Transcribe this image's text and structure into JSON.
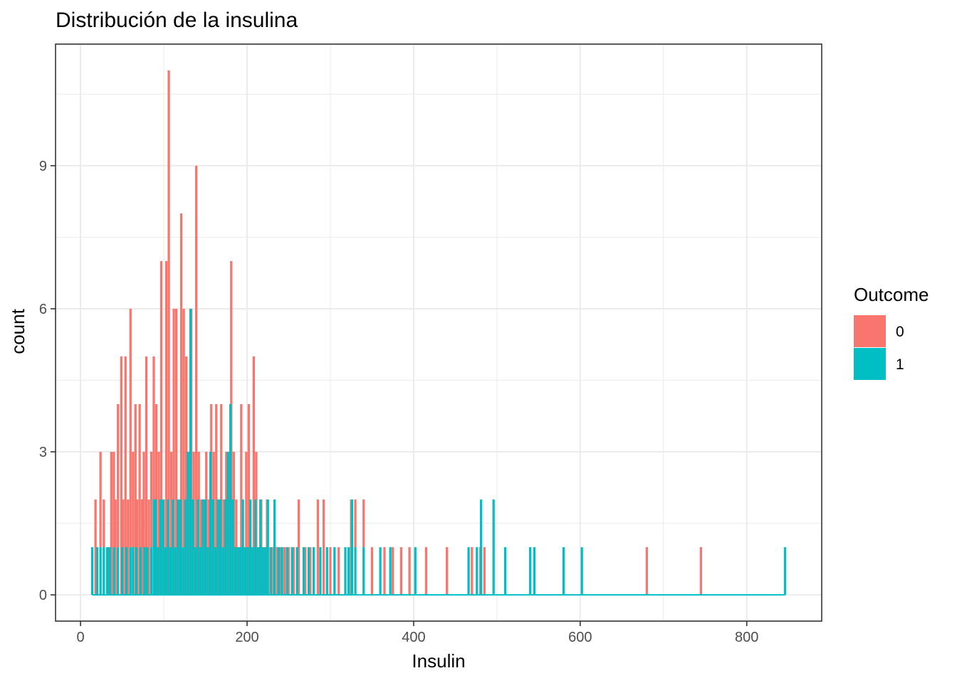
{
  "chart_data": {
    "type": "bar",
    "subtype": "histogram",
    "title": "Distribución de la insulina",
    "xlabel": "Insulin",
    "ylabel": "count",
    "xlim": [
      -30,
      890
    ],
    "ylim": [
      -0.55,
      11.55
    ],
    "x_ticks": [
      0,
      200,
      400,
      600,
      800
    ],
    "y_ticks": [
      0,
      3,
      6,
      9
    ],
    "bin_width": 2.8,
    "grid": true,
    "stacked": true,
    "legend": {
      "title": "Outcome",
      "position": "right",
      "entries": [
        {
          "label": "0",
          "color": "#F8766D"
        },
        {
          "label": "1",
          "color": "#00BFC4"
        }
      ]
    },
    "colors": {
      "0": "#F8766D",
      "1": "#00BFC4"
    },
    "x_range": [
      14,
      846
    ],
    "series": [
      {
        "name": "0",
        "color": "#F8766D",
        "bins": [
          [
            18,
            2
          ],
          [
            24,
            2
          ],
          [
            28,
            1
          ],
          [
            33,
            1
          ],
          [
            37,
            3
          ],
          [
            40,
            2
          ],
          [
            42,
            2
          ],
          [
            45,
            3
          ],
          [
            49,
            5
          ],
          [
            51,
            2
          ],
          [
            54,
            5
          ],
          [
            57,
            2
          ],
          [
            60,
            5
          ],
          [
            63,
            2
          ],
          [
            66,
            4
          ],
          [
            68,
            2
          ],
          [
            71,
            4
          ],
          [
            74,
            2
          ],
          [
            76,
            3
          ],
          [
            79,
            5
          ],
          [
            82,
            2
          ],
          [
            85,
            2
          ],
          [
            88,
            3
          ],
          [
            91,
            4
          ],
          [
            94,
            3
          ],
          [
            97,
            7
          ],
          [
            100,
            2
          ],
          [
            103,
            7
          ],
          [
            106,
            11
          ],
          [
            109,
            3
          ],
          [
            112,
            6
          ],
          [
            115,
            6
          ],
          [
            118,
            2
          ],
          [
            121,
            8
          ],
          [
            124,
            6
          ],
          [
            127,
            5
          ],
          [
            130,
            3
          ],
          [
            133,
            6
          ],
          [
            136,
            3
          ],
          [
            139,
            9
          ],
          [
            142,
            3
          ],
          [
            145,
            2
          ],
          [
            148,
            2
          ],
          [
            151,
            3
          ],
          [
            154,
            2
          ],
          [
            157,
            4
          ],
          [
            160,
            3
          ],
          [
            163,
            4
          ],
          [
            166,
            2
          ],
          [
            169,
            4
          ],
          [
            172,
            2
          ],
          [
            175,
            3
          ],
          [
            178,
            3
          ],
          [
            181,
            7
          ],
          [
            184,
            3
          ],
          [
            187,
            2
          ],
          [
            190,
            1
          ],
          [
            193,
            4
          ],
          [
            196,
            1
          ],
          [
            199,
            3
          ],
          [
            202,
            4
          ],
          [
            205,
            1
          ],
          [
            208,
            5
          ],
          [
            211,
            3
          ],
          [
            214,
            1
          ],
          [
            217,
            2
          ],
          [
            220,
            1
          ],
          [
            224,
            2
          ],
          [
            228,
            1
          ],
          [
            232,
            1
          ],
          [
            236,
            1
          ],
          [
            240,
            1
          ],
          [
            245,
            1
          ],
          [
            250,
            1
          ],
          [
            256,
            1
          ],
          [
            262,
            2
          ],
          [
            270,
            1
          ],
          [
            276,
            1
          ],
          [
            285,
            2
          ],
          [
            292,
            2
          ],
          [
            300,
            1
          ],
          [
            310,
            1
          ],
          [
            325,
            2
          ],
          [
            330,
            1
          ],
          [
            340,
            1
          ],
          [
            350,
            1
          ],
          [
            365,
            1
          ],
          [
            375,
            1
          ],
          [
            385,
            1
          ],
          [
            395,
            1
          ],
          [
            415,
            1
          ],
          [
            440,
            1
          ],
          [
            470,
            1
          ],
          [
            480,
            1
          ],
          [
            485,
            1
          ],
          [
            680,
            1
          ],
          [
            745,
            1
          ]
        ]
      },
      {
        "name": "1",
        "color": "#00BFC4",
        "bins": [
          [
            14,
            1
          ],
          [
            20,
            1
          ],
          [
            24,
            1
          ],
          [
            28,
            1
          ],
          [
            32,
            1
          ],
          [
            35,
            1
          ],
          [
            40,
            1
          ],
          [
            45,
            1
          ],
          [
            50,
            1
          ],
          [
            55,
            1
          ],
          [
            60,
            1
          ],
          [
            63,
            1
          ],
          [
            67,
            1
          ],
          [
            72,
            1
          ],
          [
            77,
            1
          ],
          [
            80,
            1
          ],
          [
            85,
            1
          ],
          [
            88,
            2
          ],
          [
            90,
            2
          ],
          [
            93,
            1
          ],
          [
            96,
            2
          ],
          [
            99,
            2
          ],
          [
            102,
            1
          ],
          [
            105,
            2
          ],
          [
            108,
            1
          ],
          [
            111,
            2
          ],
          [
            114,
            1
          ],
          [
            117,
            2
          ],
          [
            120,
            2
          ],
          [
            123,
            1
          ],
          [
            126,
            2
          ],
          [
            129,
            3
          ],
          [
            132,
            6
          ],
          [
            135,
            2
          ],
          [
            138,
            1
          ],
          [
            141,
            2
          ],
          [
            144,
            1
          ],
          [
            147,
            2
          ],
          [
            150,
            2
          ],
          [
            153,
            1
          ],
          [
            156,
            3
          ],
          [
            159,
            2
          ],
          [
            162,
            1
          ],
          [
            165,
            2
          ],
          [
            168,
            2
          ],
          [
            171,
            1
          ],
          [
            174,
            2
          ],
          [
            177,
            3
          ],
          [
            180,
            4
          ],
          [
            183,
            2
          ],
          [
            186,
            1
          ],
          [
            189,
            1
          ],
          [
            192,
            1
          ],
          [
            195,
            2
          ],
          [
            198,
            1
          ],
          [
            201,
            1
          ],
          [
            204,
            2
          ],
          [
            207,
            1
          ],
          [
            210,
            2
          ],
          [
            213,
            1
          ],
          [
            216,
            2
          ],
          [
            219,
            1
          ],
          [
            222,
            1
          ],
          [
            225,
            2
          ],
          [
            229,
            1
          ],
          [
            233,
            2
          ],
          [
            238,
            1
          ],
          [
            242,
            1
          ],
          [
            248,
            1
          ],
          [
            254,
            1
          ],
          [
            260,
            1
          ],
          [
            268,
            1
          ],
          [
            274,
            1
          ],
          [
            280,
            1
          ],
          [
            288,
            1
          ],
          [
            296,
            1
          ],
          [
            305,
            1
          ],
          [
            318,
            1
          ],
          [
            322,
            1
          ],
          [
            326,
            2
          ],
          [
            330,
            1
          ],
          [
            340,
            1
          ],
          [
            360,
            1
          ],
          [
            372,
            1
          ],
          [
            402,
            1
          ],
          [
            466,
            1
          ],
          [
            476,
            1
          ],
          [
            481,
            2
          ],
          [
            496,
            2
          ],
          [
            510,
            1
          ],
          [
            540,
            1
          ],
          [
            545,
            1
          ],
          [
            580,
            1
          ],
          [
            602,
            1
          ],
          [
            846,
            1
          ]
        ]
      }
    ]
  }
}
